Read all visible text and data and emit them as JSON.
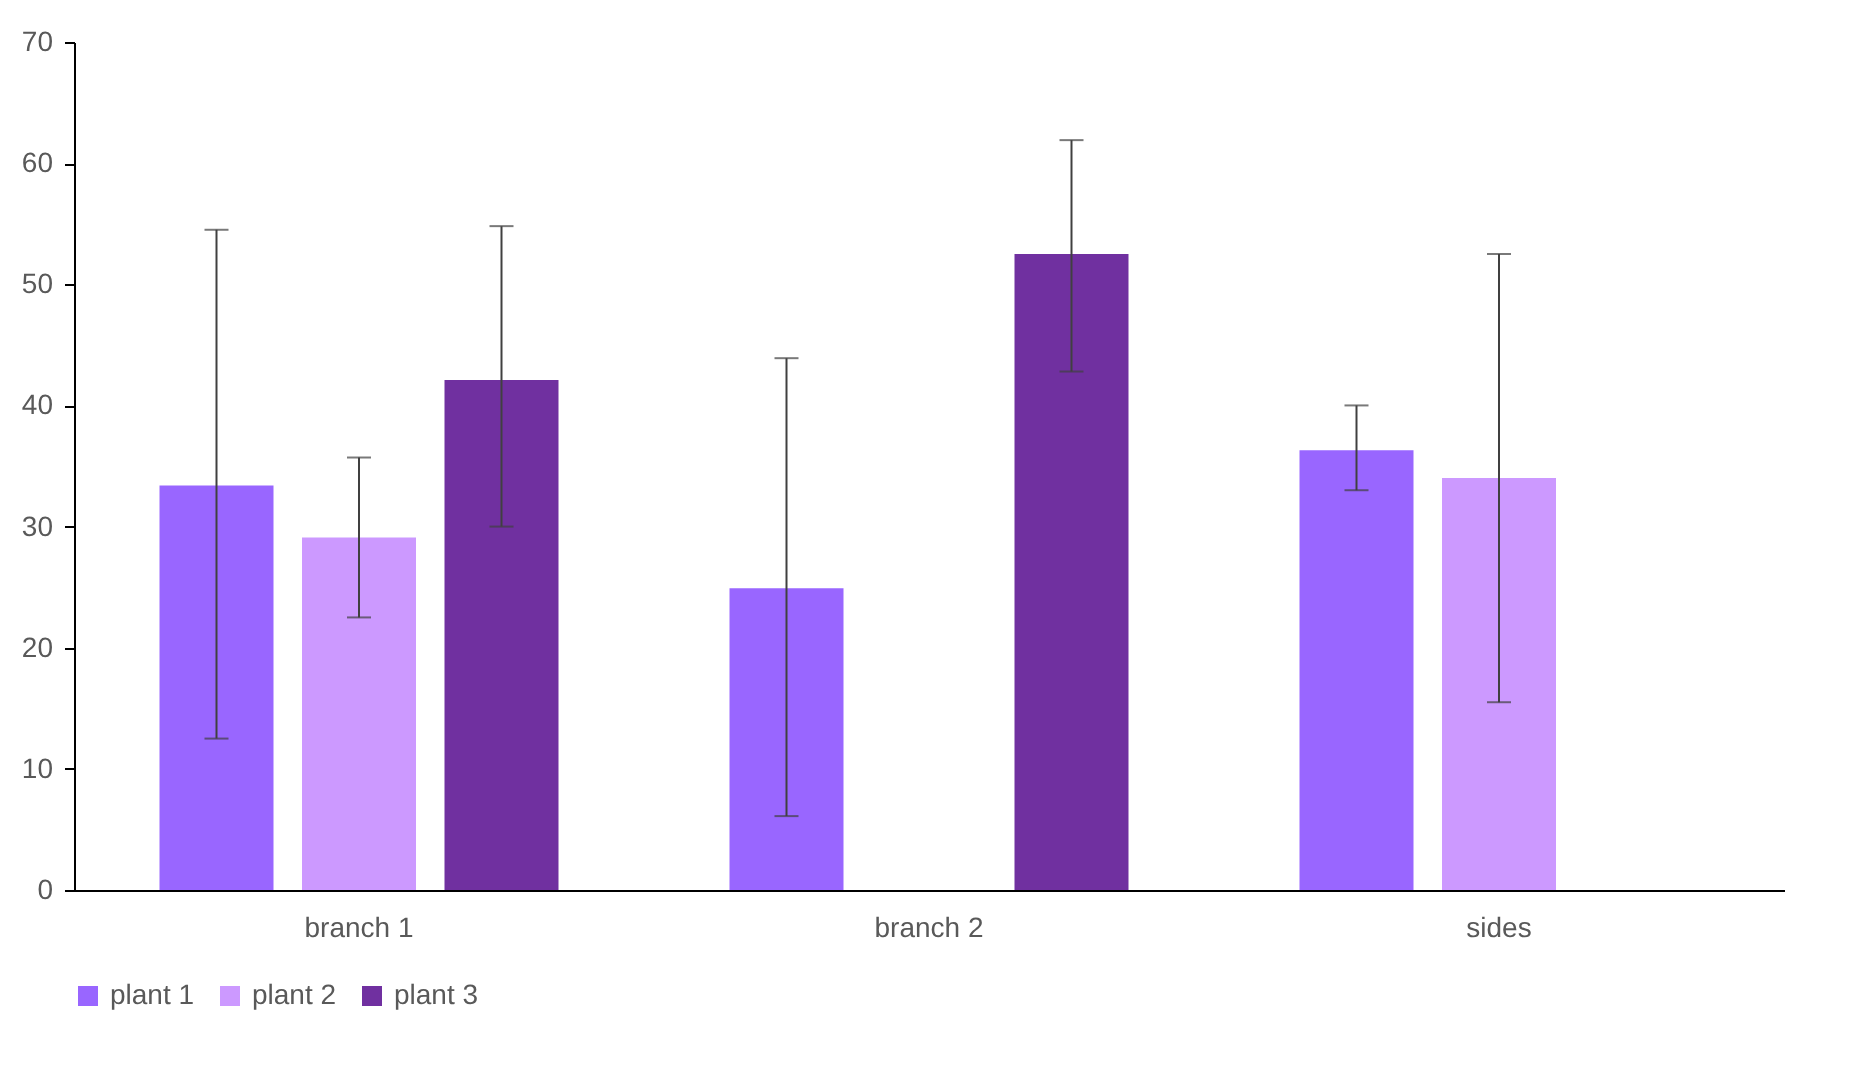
{
  "chart_data": {
    "type": "bar",
    "categories": [
      "branch 1",
      "branch 2",
      "sides"
    ],
    "series": [
      {
        "name": "plant 1",
        "color": "#9966ff",
        "values": [
          33.4,
          24.9,
          36.3
        ],
        "errors": [
          [
            12.5,
            54.5
          ],
          [
            6.1,
            43.9
          ],
          [
            33,
            40
          ]
        ]
      },
      {
        "name": "plant 2",
        "color": "#cc99ff",
        "values": [
          29.1,
          null,
          34
        ],
        "errors": [
          [
            22.5,
            35.7
          ],
          null,
          [
            15.5,
            52.5
          ]
        ]
      },
      {
        "name": "plant 3",
        "color": "#7030a0",
        "values": [
          42.1,
          52.5,
          null
        ],
        "errors": [
          [
            30,
            54.8
          ],
          [
            42.8,
            61.9
          ],
          null
        ]
      }
    ],
    "ylim": [
      0,
      70
    ],
    "yticks": [
      0,
      10,
      20,
      30,
      40,
      50,
      60,
      70
    ],
    "grid": false,
    "legend": "bottom"
  }
}
